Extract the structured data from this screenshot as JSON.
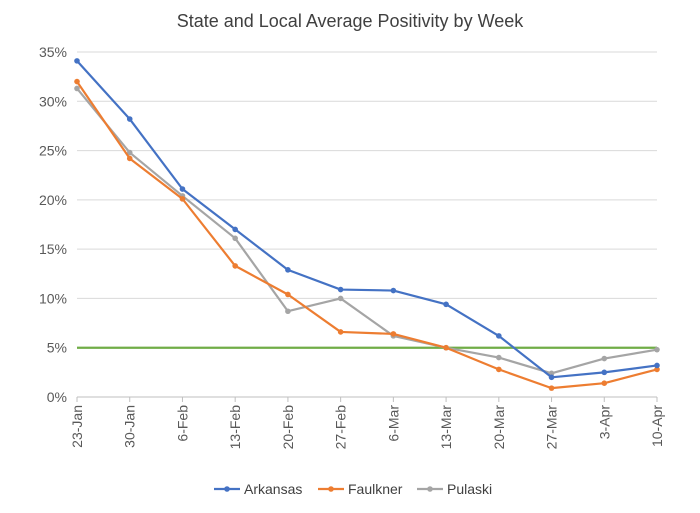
{
  "chart_data": {
    "type": "line",
    "title": "State and Local Average Positivity by Week",
    "xlabel": "",
    "ylabel": "",
    "categories": [
      "23-Jan",
      "30-Jan",
      "6-Feb",
      "13-Feb",
      "20-Feb",
      "27-Feb",
      "6-Mar",
      "13-Mar",
      "20-Mar",
      "27-Mar",
      "3-Apr",
      "10-Apr"
    ],
    "ylim": [
      0,
      35
    ],
    "yticks": [
      0,
      5,
      10,
      15,
      20,
      25,
      30,
      35
    ],
    "ytick_labels": [
      "0%",
      "5%",
      "10%",
      "15%",
      "20%",
      "25%",
      "30%",
      "35%"
    ],
    "grid": true,
    "legend_position": "bottom",
    "reference_line": {
      "value": 5,
      "color": "#70AD47"
    },
    "series": [
      {
        "name": "Arkansas",
        "color": "#4472C4",
        "values": [
          34.1,
          28.2,
          21.1,
          17.0,
          12.9,
          10.9,
          10.8,
          9.4,
          6.2,
          2.0,
          2.5,
          3.2
        ]
      },
      {
        "name": "Faulkner",
        "color": "#ED7D31",
        "values": [
          32.0,
          24.2,
          20.1,
          13.3,
          10.4,
          6.6,
          6.4,
          5.0,
          2.8,
          0.9,
          1.4,
          2.8
        ]
      },
      {
        "name": "Pulaski",
        "color": "#A5A5A5",
        "values": [
          31.3,
          24.8,
          20.4,
          16.1,
          8.7,
          10.0,
          6.2,
          5.0,
          4.0,
          2.4,
          3.9,
          4.8
        ]
      }
    ]
  }
}
